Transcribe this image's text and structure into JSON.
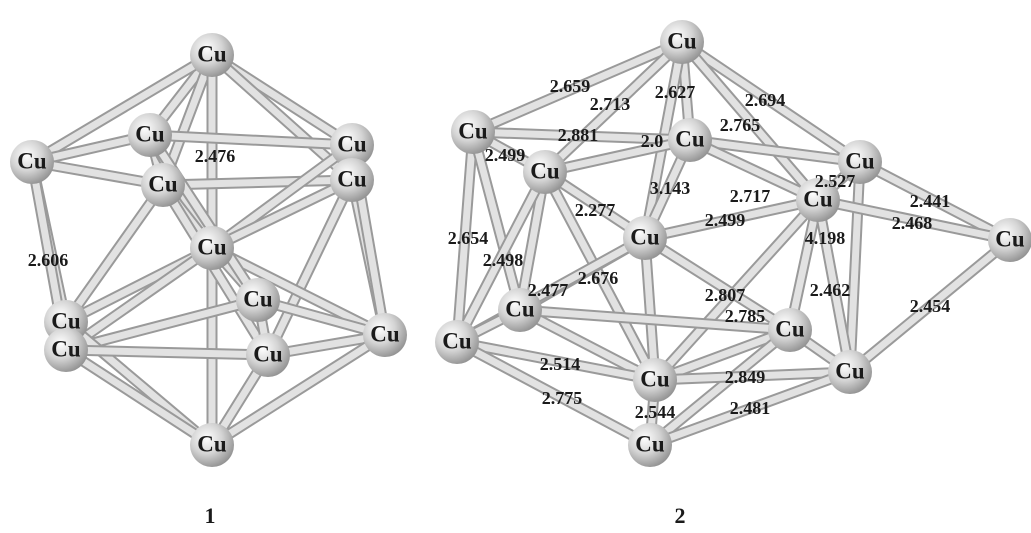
{
  "clusters": [
    {
      "caption": "1",
      "atoms": [
        "Cu",
        "Cu",
        "Cu",
        "Cu",
        "Cu",
        "Cu",
        "Cu",
        "Cu",
        "Cu",
        "Cu",
        "Cu",
        "Cu",
        "Cu"
      ],
      "bond_lengths": [
        "2.476",
        "2.606"
      ]
    },
    {
      "caption": "2",
      "atoms": [
        "Cu",
        "Cu",
        "Cu",
        "Cu",
        "Cu",
        "Cu",
        "Cu",
        "Cu",
        "Cu",
        "Cu",
        "Cu",
        "Cu",
        "Cu",
        "Cu"
      ],
      "bond_lengths": [
        "2.659",
        "2.713",
        "2.627",
        "2.694",
        "2.765",
        "2.881",
        "2.0",
        "2.499",
        "3.143",
        "2.717",
        "2.527",
        "2.441",
        "2.468",
        "2.277",
        "2.499",
        "4.198",
        "2.654",
        "2.498",
        "2.676",
        "2.477",
        "2.807",
        "2.785",
        "2.462",
        "2.454",
        "2.514",
        "2.849",
        "2.775",
        "2.544",
        "2.481"
      ]
    }
  ]
}
